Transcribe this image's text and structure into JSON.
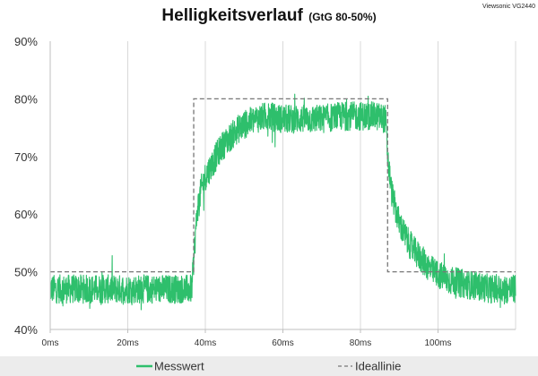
{
  "chart_data": {
    "type": "line",
    "title": "Helligkeitsverlauf",
    "subtitle": "(GtG 80-50%)",
    "watermark": "Viewsonic VG2440",
    "xlabel": "",
    "ylabel": "",
    "x_unit": "ms",
    "xlim": [
      0,
      120
    ],
    "ylim": [
      40,
      90
    ],
    "x_ticks": [
      0,
      20,
      40,
      60,
      80,
      100
    ],
    "x_tick_labels": [
      "0ms",
      "20ms",
      "40ms",
      "60ms",
      "80ms",
      "100ms"
    ],
    "y_ticks": [
      40,
      50,
      60,
      70,
      80,
      90
    ],
    "y_tick_labels": [
      "40%",
      "50%",
      "60%",
      "70%",
      "80%",
      "90%"
    ],
    "grid": {
      "vertical": true,
      "horizontal": false
    },
    "legend_position": "bottom",
    "series": [
      {
        "name": "Messwert",
        "color": "#2ebf6c",
        "style": "noisy-band",
        "x": [
          0,
          36.5,
          37,
          37.5,
          38,
          39,
          40,
          42,
          44,
          46,
          48,
          50,
          53,
          56,
          60,
          65,
          70,
          75,
          80,
          84,
          86.5,
          87,
          88,
          89,
          90,
          92,
          94,
          96,
          98,
          100,
          103,
          106,
          110,
          114,
          120
        ],
        "y": [
          47,
          47,
          52,
          57,
          61,
          64.5,
          66.5,
          69,
          71.5,
          73,
          74.5,
          75.5,
          76.5,
          77,
          76.5,
          76.5,
          76.5,
          77,
          77,
          77,
          76.5,
          70,
          64,
          61,
          58.5,
          55.5,
          53.5,
          52,
          50.5,
          49.5,
          48.5,
          48,
          47.5,
          47,
          47
        ],
        "noise_amplitude": 2.5
      },
      {
        "name": "Ideallinie",
        "color": "#777777",
        "style": "dashed",
        "x": [
          0,
          37,
          37,
          87,
          87,
          120
        ],
        "y": [
          50,
          50,
          80,
          80,
          50,
          50
        ]
      }
    ]
  },
  "colors": {
    "measured": "#2ebf6c",
    "ideal": "#777777",
    "grid": "#d9d9d9",
    "axis": "#bfbfbf",
    "footer_bg": "#ececec"
  }
}
